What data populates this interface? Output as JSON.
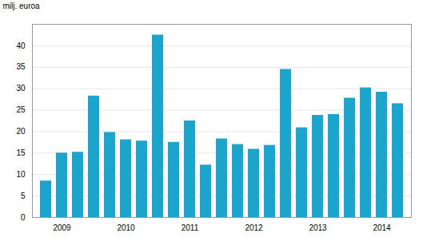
{
  "chart_data": {
    "type": "bar",
    "ylabel": "milj. euroa",
    "categories": [
      null,
      "2009",
      null,
      null,
      null,
      "2010",
      null,
      null,
      null,
      "2011",
      null,
      null,
      null,
      "2012",
      null,
      null,
      null,
      "2013",
      null,
      null,
      null,
      "2014",
      null
    ],
    "values": [
      8.5,
      15.0,
      15.2,
      28.3,
      19.8,
      18.1,
      17.8,
      42.5,
      17.5,
      22.5,
      12.2,
      18.3,
      17.0,
      15.9,
      16.8,
      34.5,
      20.9,
      23.8,
      24.0,
      27.8,
      30.2,
      29.2,
      26.5
    ],
    "color": "#1aa5cc",
    "ylim": [
      0,
      45
    ],
    "yticks": [
      0,
      5,
      10,
      15,
      20,
      25,
      30,
      35,
      40
    ],
    "grid": true
  }
}
